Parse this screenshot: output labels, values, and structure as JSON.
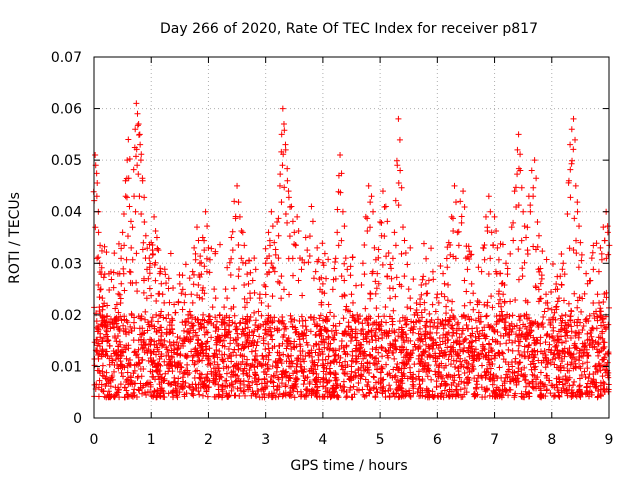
{
  "chart_data": {
    "type": "scatter",
    "title": "Day 266 of 2020, Rate Of TEC Index for receiver p817",
    "xlabel": "GPS time / hours",
    "ylabel": "ROTI / TECUs",
    "xlim": [
      0,
      9
    ],
    "ylim": [
      0,
      0.07
    ],
    "x_ticks": [
      0,
      1,
      2,
      3,
      4,
      5,
      6,
      7,
      8,
      9
    ],
    "x_tick_labels": [
      "0",
      "1",
      "2",
      "3",
      "4",
      "5",
      "6",
      "7",
      "8",
      "9"
    ],
    "y_ticks": [
      0,
      0.01,
      0.02,
      0.03,
      0.04,
      0.05,
      0.06,
      0.07
    ],
    "y_tick_labels": [
      "0",
      "0.01",
      "0.02",
      "0.03",
      "0.04",
      "0.05",
      "0.06",
      "0.07"
    ],
    "grid": true,
    "marker": "+",
    "color": "#ff0000",
    "series": [
      {
        "name": "ROTI",
        "points": [
          [
            0.02,
            0.051
          ],
          [
            0.03,
            0.049
          ],
          [
            0.05,
            0.043
          ],
          [
            0.08,
            0.036
          ],
          [
            0.1,
            0.03
          ],
          [
            0.12,
            0.025
          ],
          [
            0.15,
            0.021
          ],
          [
            0.2,
            0.018
          ],
          [
            0.25,
            0.015
          ],
          [
            0.3,
            0.012
          ],
          [
            0.4,
            0.022
          ],
          [
            0.45,
            0.028
          ],
          [
            0.5,
            0.036
          ],
          [
            0.55,
            0.046
          ],
          [
            0.58,
            0.05
          ],
          [
            0.6,
            0.054
          ],
          [
            0.62,
            0.041
          ],
          [
            0.65,
            0.033
          ],
          [
            0.7,
            0.043
          ],
          [
            0.72,
            0.056
          ],
          [
            0.74,
            0.061
          ],
          [
            0.76,
            0.059
          ],
          [
            0.78,
            0.057
          ],
          [
            0.8,
            0.055
          ],
          [
            0.82,
            0.05
          ],
          [
            0.85,
            0.046
          ],
          [
            0.88,
            0.038
          ],
          [
            0.9,
            0.031
          ],
          [
            0.95,
            0.027
          ],
          [
            1.0,
            0.034
          ],
          [
            1.05,
            0.039
          ],
          [
            1.1,
            0.035
          ],
          [
            1.15,
            0.028
          ],
          [
            1.2,
            0.024
          ],
          [
            1.3,
            0.02
          ],
          [
            1.4,
            0.022
          ],
          [
            1.5,
            0.026
          ],
          [
            1.6,
            0.018
          ],
          [
            1.7,
            0.024
          ],
          [
            1.75,
            0.033
          ],
          [
            1.8,
            0.037
          ],
          [
            1.85,
            0.03
          ],
          [
            1.9,
            0.035
          ],
          [
            1.95,
            0.04
          ],
          [
            2.0,
            0.033
          ],
          [
            2.1,
            0.025
          ],
          [
            2.2,
            0.02
          ],
          [
            2.3,
            0.025
          ],
          [
            2.4,
            0.035
          ],
          [
            2.45,
            0.042
          ],
          [
            2.5,
            0.045
          ],
          [
            2.55,
            0.039
          ],
          [
            2.6,
            0.036
          ],
          [
            2.65,
            0.03
          ],
          [
            2.7,
            0.026
          ],
          [
            2.8,
            0.031
          ],
          [
            2.9,
            0.024
          ],
          [
            3.0,
            0.03
          ],
          [
            3.05,
            0.036
          ],
          [
            3.1,
            0.04
          ],
          [
            3.15,
            0.034
          ],
          [
            3.2,
            0.038
          ],
          [
            3.25,
            0.045
          ],
          [
            3.28,
            0.055
          ],
          [
            3.3,
            0.06
          ],
          [
            3.32,
            0.057
          ],
          [
            3.35,
            0.052
          ],
          [
            3.38,
            0.046
          ],
          [
            3.4,
            0.044
          ],
          [
            3.45,
            0.041
          ],
          [
            3.5,
            0.036
          ],
          [
            3.55,
            0.039
          ],
          [
            3.6,
            0.031
          ],
          [
            3.7,
            0.035
          ],
          [
            3.8,
            0.041
          ],
          [
            3.9,
            0.033
          ],
          [
            4.0,
            0.026
          ],
          [
            4.1,
            0.022
          ],
          [
            4.2,
            0.029
          ],
          [
            4.25,
            0.036
          ],
          [
            4.28,
            0.047
          ],
          [
            4.3,
            0.051
          ],
          [
            4.35,
            0.04
          ],
          [
            4.4,
            0.031
          ],
          [
            4.5,
            0.024
          ],
          [
            4.6,
            0.02
          ],
          [
            4.7,
            0.03
          ],
          [
            4.75,
            0.039
          ],
          [
            4.8,
            0.045
          ],
          [
            4.85,
            0.043
          ],
          [
            4.9,
            0.033
          ],
          [
            4.95,
            0.028
          ],
          [
            5.0,
            0.038
          ],
          [
            5.05,
            0.044
          ],
          [
            5.1,
            0.041
          ],
          [
            5.15,
            0.032
          ],
          [
            5.2,
            0.027
          ],
          [
            5.25,
            0.036
          ],
          [
            5.3,
            0.049
          ],
          [
            5.32,
            0.058
          ],
          [
            5.35,
            0.048
          ],
          [
            5.4,
            0.037
          ],
          [
            5.45,
            0.032
          ],
          [
            5.5,
            0.025
          ],
          [
            5.6,
            0.02
          ],
          [
            5.7,
            0.022
          ],
          [
            5.8,
            0.026
          ],
          [
            5.9,
            0.019
          ],
          [
            6.0,
            0.024
          ],
          [
            6.1,
            0.028
          ],
          [
            6.2,
            0.034
          ],
          [
            6.25,
            0.039
          ],
          [
            6.3,
            0.045
          ],
          [
            6.35,
            0.036
          ],
          [
            6.4,
            0.042
          ],
          [
            6.45,
            0.044
          ],
          [
            6.5,
            0.031
          ],
          [
            6.6,
            0.026
          ],
          [
            6.7,
            0.022
          ],
          [
            6.8,
            0.033
          ],
          [
            6.85,
            0.039
          ],
          [
            6.9,
            0.043
          ],
          [
            6.95,
            0.036
          ],
          [
            7.0,
            0.039
          ],
          [
            7.05,
            0.033
          ],
          [
            7.1,
            0.028
          ],
          [
            7.15,
            0.024
          ],
          [
            7.2,
            0.03
          ],
          [
            7.3,
            0.037
          ],
          [
            7.35,
            0.044
          ],
          [
            7.4,
            0.052
          ],
          [
            7.42,
            0.055
          ],
          [
            7.45,
            0.048
          ],
          [
            7.5,
            0.04
          ],
          [
            7.55,
            0.035
          ],
          [
            7.6,
            0.043
          ],
          [
            7.65,
            0.048
          ],
          [
            7.7,
            0.05
          ],
          [
            7.75,
            0.038
          ],
          [
            7.8,
            0.029
          ],
          [
            7.9,
            0.024
          ],
          [
            8.0,
            0.021
          ],
          [
            8.1,
            0.025
          ],
          [
            8.2,
            0.03
          ],
          [
            8.3,
            0.046
          ],
          [
            8.32,
            0.053
          ],
          [
            8.35,
            0.056
          ],
          [
            8.38,
            0.058
          ],
          [
            8.42,
            0.045
          ],
          [
            8.45,
            0.04
          ],
          [
            8.5,
            0.034
          ],
          [
            8.6,
            0.028
          ],
          [
            8.7,
            0.031
          ],
          [
            8.8,
            0.024
          ],
          [
            8.85,
            0.033
          ],
          [
            8.9,
            0.037
          ],
          [
            8.95,
            0.04
          ],
          [
            8.98,
            0.036
          ]
        ]
      }
    ],
    "background_band": {
      "note": "dense cluster of ROTI values spanning the full time range",
      "x_range": [
        0,
        9
      ],
      "y_typical": [
        0.003,
        0.03
      ]
    }
  }
}
